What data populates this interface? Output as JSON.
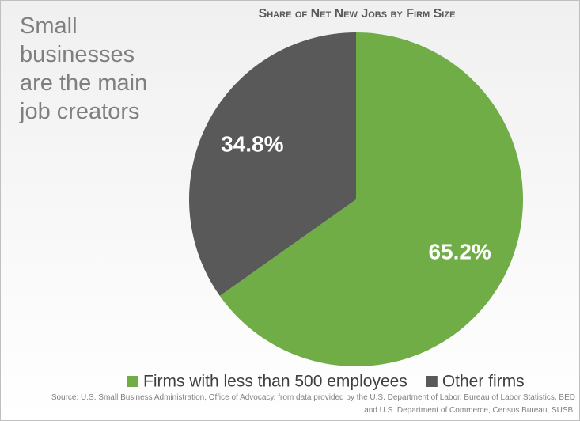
{
  "chart_data": {
    "type": "pie",
    "title": "Share of Net New Jobs by Firm Size",
    "annotation": "Small businesses are the main job creators",
    "categories": [
      "Firms with less than 500 employees",
      "Other firms"
    ],
    "values": [
      65.2,
      34.8
    ],
    "value_labels": [
      "65.2%",
      "34.8%"
    ],
    "colors": [
      "#70ad47",
      "#595959"
    ],
    "source": "Source: U.S. Small Business Administration, Office of Advocacy, from data provided by the U.S. Department of Labor, Bureau of Labor Statistics, BED and U.S. Department of Commerce, Census Bureau, SUSB."
  }
}
